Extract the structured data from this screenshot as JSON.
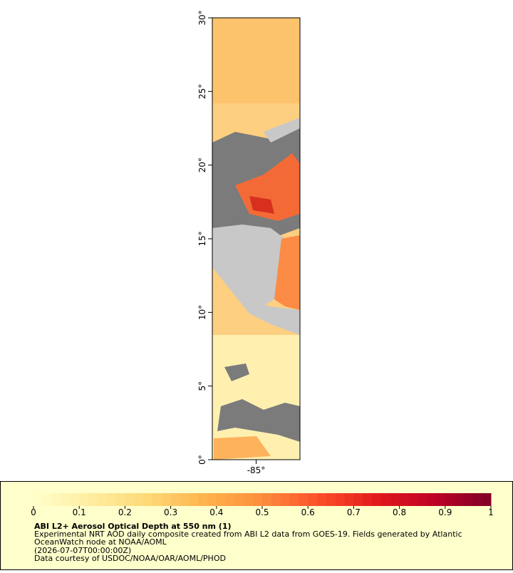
{
  "map": {
    "lat_range": [
      0,
      30
    ],
    "lon_range": [
      -88,
      -82
    ],
    "lat_ticks": [
      {
        "value": 0,
        "label": "0°"
      },
      {
        "value": 5,
        "label": "5°"
      },
      {
        "value": 10,
        "label": "10°"
      },
      {
        "value": 15,
        "label": "15°"
      },
      {
        "value": 20,
        "label": "20°"
      },
      {
        "value": 25,
        "label": "25°"
      },
      {
        "value": 30,
        "label": "30°"
      }
    ],
    "lon_ticks": [
      {
        "value": -85,
        "label": "-85°"
      }
    ]
  },
  "colorbar": {
    "range": [
      0,
      1
    ],
    "ticks": [
      0,
      0.1,
      0.2,
      0.3,
      0.4,
      0.5,
      0.6,
      0.7,
      0.8,
      0.9,
      1
    ],
    "colors": [
      "#ffffcc",
      "#ffeda0",
      "#fed976",
      "#feb24c",
      "#fd8d3c",
      "#fc4e2a",
      "#e31a1c",
      "#bd0026",
      "#800026"
    ]
  },
  "caption": {
    "title": "ABI L2+ Aerosol Optical Depth at 550 nm (1)",
    "lines": [
      "Experimental NRT AOD daily composite created from ABI L2 data from GOES-19. Fields generated by Atlantic",
      "OceanWatch node at NOAA/AOML",
      "(2026-07-07T00:00:00Z)",
      "Data courtesy of USDOC/NOAA/OAR/AOML/PHOD"
    ]
  }
}
